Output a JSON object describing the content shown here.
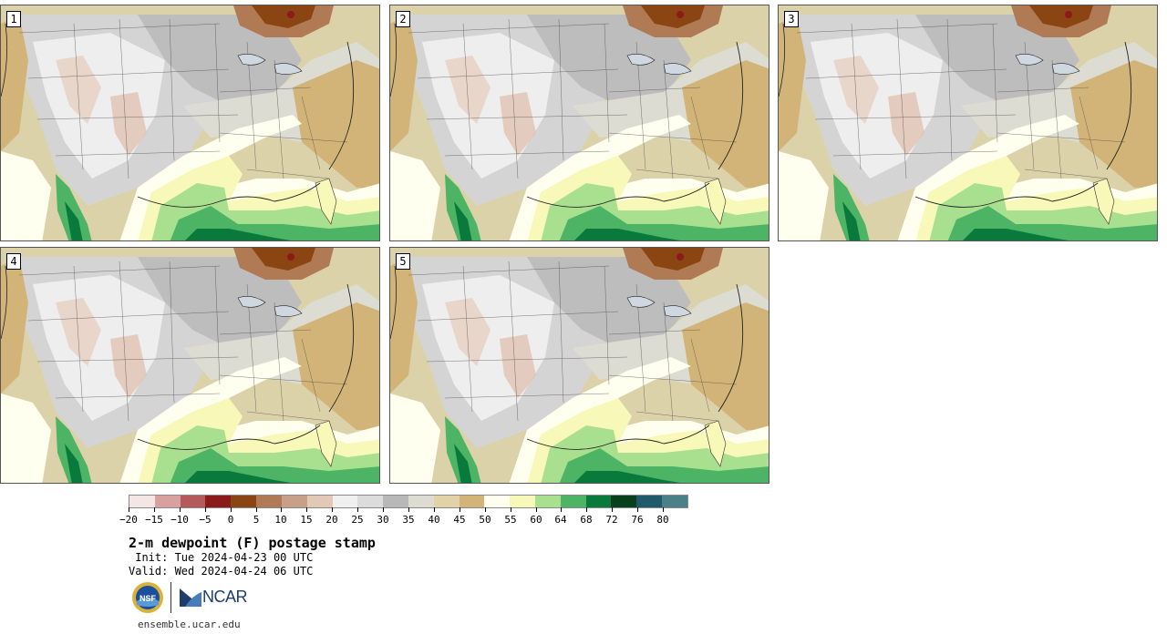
{
  "panels": [
    {
      "label": "1"
    },
    {
      "label": "2"
    },
    {
      "label": "3"
    },
    {
      "label": "4"
    },
    {
      "label": "5"
    }
  ],
  "colorbar": {
    "colors": [
      "#f5e6e6",
      "#d9a0a0",
      "#b45a5a",
      "#8b1a1a",
      "#8b4513",
      "#b07a55",
      "#c8a088",
      "#e2c8b6",
      "#f0f0f0",
      "#dcdcdc",
      "#b8b8b8",
      "#dcdcd2",
      "#e2d2a8",
      "#d2b478",
      "#fffff0",
      "#f8f8b8",
      "#a8e090",
      "#4cb464",
      "#0a7a3c",
      "#08401c",
      "#1e5a6a",
      "#4a8088"
    ],
    "tick_labels": [
      "−20",
      "−15",
      "−10",
      "−5",
      "0",
      "5",
      "10",
      "15",
      "20",
      "25",
      "30",
      "35",
      "40",
      "45",
      "50",
      "55",
      "60",
      "64",
      "68",
      "72",
      "76",
      "80"
    ]
  },
  "title": "2-m dewpoint (F) postage stamp",
  "init": " Init: Tue 2024-04-23 00 UTC",
  "valid": "Valid: Wed 2024-04-24 06 UTC",
  "logos": {
    "nsf": "NSF",
    "ncar": "NCAR"
  },
  "site": "ensemble.ucar.edu"
}
